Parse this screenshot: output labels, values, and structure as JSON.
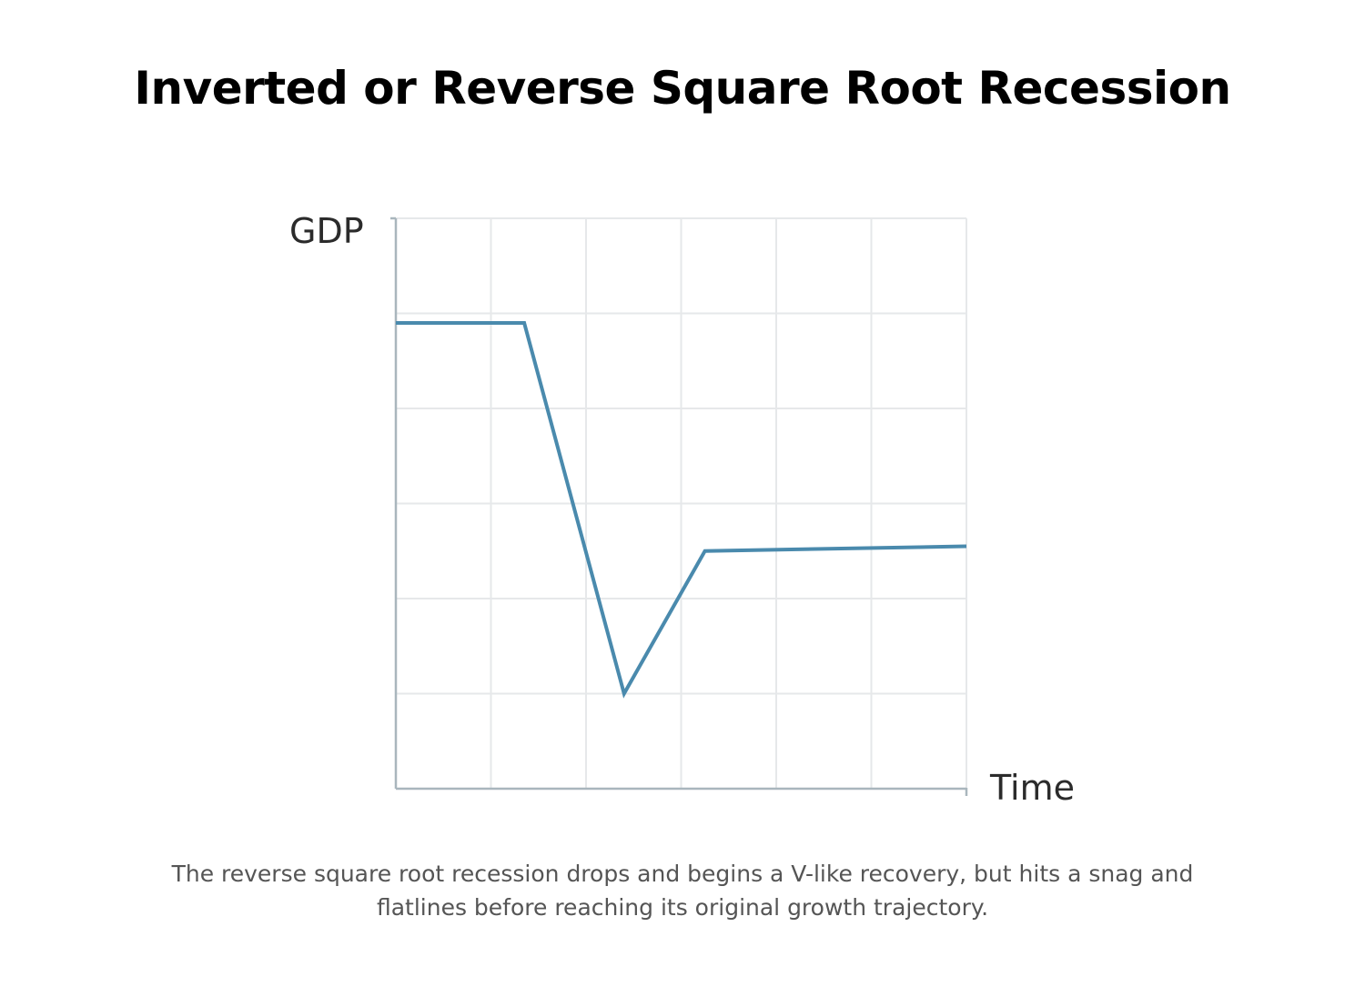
{
  "title": "Inverted or Reverse Square Root Recession",
  "caption": {
    "line1": "The reverse square root recession drops and begins a V-like recovery, but hits a snag and",
    "line2": "flatlines before reaching its original growth trajectory."
  },
  "chart_data": {
    "type": "line",
    "title": "Inverted or Reverse Square Root Recession",
    "xlabel": "Time",
    "ylabel": "GDP",
    "xlim": [
      0,
      6
    ],
    "ylim": [
      0,
      6
    ],
    "grid": true,
    "tick_labels": false,
    "series": [
      {
        "x": [
          0,
          1.35,
          2.4,
          3.25,
          6
        ],
        "y": [
          4.9,
          4.9,
          1.0,
          2.5,
          2.55
        ]
      }
    ],
    "colors": {
      "line": "#4a8aad",
      "grid": "#e6e8ea",
      "axis": "#a9b6bd"
    }
  }
}
